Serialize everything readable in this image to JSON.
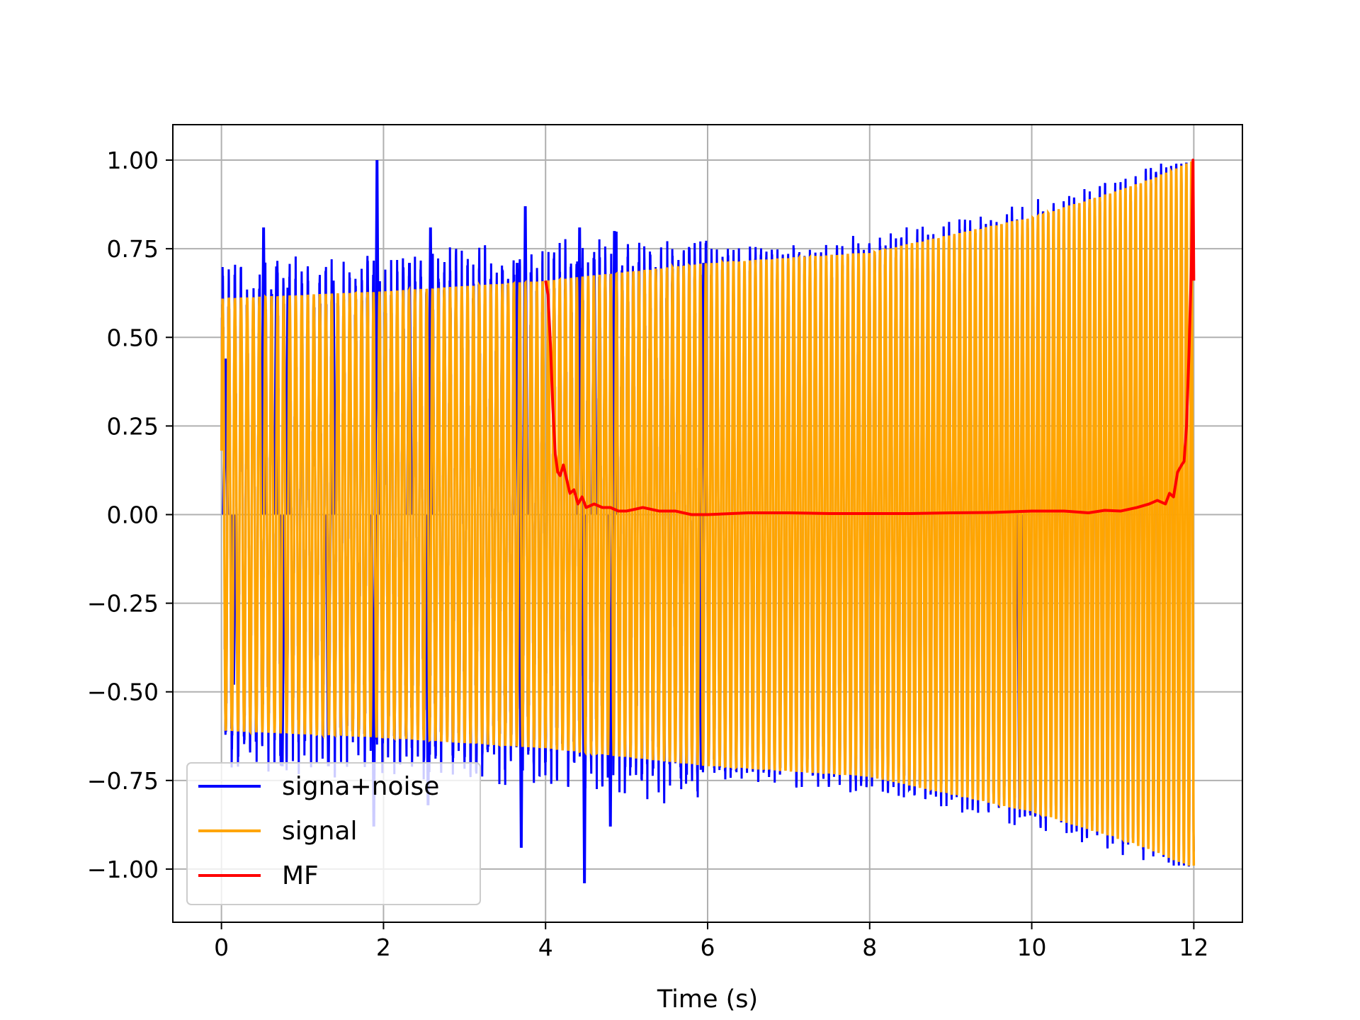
{
  "chart_data": {
    "type": "line",
    "title": "",
    "xlabel": "Time (s)",
    "ylabel": "",
    "xlim": [
      -0.6,
      12.6
    ],
    "ylim": [
      -1.15,
      1.1
    ],
    "xticks": [
      0,
      2,
      4,
      6,
      8,
      10,
      12
    ],
    "xtick_labels": [
      "0",
      "2",
      "4",
      "6",
      "8",
      "10",
      "12"
    ],
    "yticks": [
      1.0,
      0.75,
      0.5,
      0.25,
      0.0,
      -0.25,
      -0.5,
      -0.75,
      -1.0
    ],
    "ytick_labels": [
      "1.00",
      "0.75",
      "0.50",
      "0.25",
      "0.00",
      "−0.25",
      "−0.50",
      "−0.75",
      "−1.00"
    ],
    "grid": true,
    "legend_position": "lower-left",
    "series": [
      {
        "name": "signa+noise",
        "color": "#0000ff",
        "x_range": [
          0,
          12
        ],
        "description_of_shape": "noisy oscillation, spikes up to 1.00 near t=1.9 and down to -1.04 near t=4.5",
        "peaks": [
          {
            "x": 0.05,
            "y": 0.44
          },
          {
            "x": 0.52,
            "y": 0.81
          },
          {
            "x": 0.68,
            "y": 0.7
          },
          {
            "x": 0.82,
            "y": 0.64
          },
          {
            "x": 1.38,
            "y": 0.66
          },
          {
            "x": 1.92,
            "y": 1.0
          },
          {
            "x": 2.32,
            "y": 0.71
          },
          {
            "x": 2.58,
            "y": 0.81
          },
          {
            "x": 3.65,
            "y": 0.71
          },
          {
            "x": 3.75,
            "y": 0.87
          },
          {
            "x": 4.42,
            "y": 0.81
          },
          {
            "x": 4.6,
            "y": 0.72
          },
          {
            "x": 4.85,
            "y": 0.8
          },
          {
            "x": 5.95,
            "y": 0.71
          }
        ],
        "troughs": [
          {
            "x": 0.15,
            "y": -0.48
          },
          {
            "x": 0.75,
            "y": -0.71
          },
          {
            "x": 1.32,
            "y": -0.71
          },
          {
            "x": 1.88,
            "y": -0.88
          },
          {
            "x": 2.55,
            "y": -0.82
          },
          {
            "x": 3.7,
            "y": -0.94
          },
          {
            "x": 4.48,
            "y": -1.04
          },
          {
            "x": 4.8,
            "y": -0.88
          },
          {
            "x": 5.92,
            "y": -0.72
          },
          {
            "x": 9.85,
            "y": -0.83
          }
        ]
      },
      {
        "name": "signal",
        "color": "#ffa500",
        "x_range": [
          0,
          12
        ],
        "description_of_shape": "chirp oscillation, amplitude 0.61 at t=0 growing to 1.00 at t=12",
        "envelope": {
          "x": [
            0,
            2,
            4,
            6,
            8,
            9,
            10,
            11,
            11.5,
            12
          ],
          "amplitude": [
            0.61,
            0.63,
            0.66,
            0.71,
            0.74,
            0.79,
            0.84,
            0.91,
            0.95,
            1.0
          ]
        }
      },
      {
        "name": "MF",
        "color": "#ff0000",
        "x": [
          4.0,
          4.03,
          4.06,
          4.09,
          4.12,
          4.15,
          4.18,
          4.22,
          4.26,
          4.3,
          4.35,
          4.4,
          4.45,
          4.5,
          4.6,
          4.7,
          4.8,
          4.9,
          5.0,
          5.2,
          5.4,
          5.6,
          5.8,
          6.0,
          6.5,
          7.0,
          7.5,
          8.0,
          8.5,
          9.0,
          9.5,
          10.0,
          10.4,
          10.7,
          10.9,
          11.1,
          11.3,
          11.45,
          11.55,
          11.65,
          11.7,
          11.75,
          11.8,
          11.85,
          11.88,
          11.91,
          11.94,
          11.97,
          11.99,
          12.0
        ],
        "y": [
          0.66,
          0.62,
          0.48,
          0.3,
          0.17,
          0.12,
          0.11,
          0.14,
          0.1,
          0.06,
          0.07,
          0.03,
          0.05,
          0.02,
          0.03,
          0.02,
          0.02,
          0.01,
          0.01,
          0.02,
          0.01,
          0.01,
          0.0,
          0.0,
          0.005,
          0.005,
          0.003,
          0.003,
          0.003,
          0.005,
          0.006,
          0.01,
          0.01,
          0.005,
          0.012,
          0.01,
          0.02,
          0.03,
          0.04,
          0.03,
          0.06,
          0.05,
          0.12,
          0.14,
          0.15,
          0.25,
          0.45,
          0.7,
          1.0,
          0.66
        ]
      }
    ]
  }
}
